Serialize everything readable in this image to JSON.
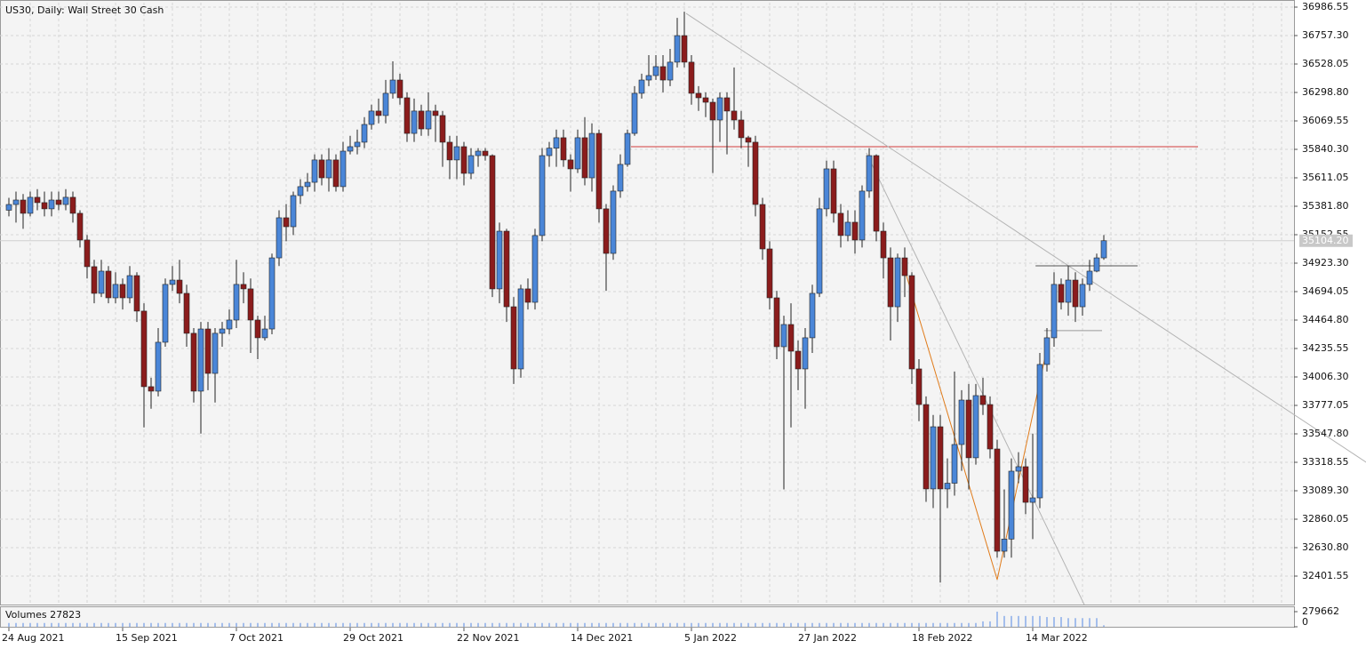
{
  "chart_data": {
    "type": "candlestick",
    "title": "US30, Daily:  Wall Street 30 Cash",
    "categories": [
      "24 Aug 2021",
      null,
      null,
      null,
      null,
      null,
      null,
      null,
      null,
      null,
      null,
      null,
      null,
      null,
      null,
      null,
      "15 Sep 2021",
      null,
      null,
      null,
      null,
      null,
      null,
      null,
      null,
      null,
      null,
      null,
      null,
      null,
      null,
      null,
      "7 Oct 2021",
      null,
      null,
      null,
      null,
      null,
      null,
      null,
      null,
      null,
      null,
      null,
      null,
      null,
      null,
      null,
      "29 Oct 2021",
      null,
      null,
      null,
      null,
      null,
      null,
      null,
      null,
      null,
      null,
      null,
      null,
      null,
      null,
      null,
      "22 Nov 2021",
      null,
      null,
      null,
      null,
      null,
      null,
      null,
      null,
      null,
      null,
      null,
      null,
      null,
      null,
      null,
      "14 Dec 2021",
      null,
      null,
      null,
      null,
      null,
      null,
      null,
      null,
      null,
      null,
      null,
      null,
      null,
      null,
      null,
      "5 Jan 2022",
      null,
      null,
      null,
      null,
      null,
      null,
      null,
      null,
      null,
      null,
      null,
      null,
      null,
      null,
      null,
      "27 Jan 2022",
      null,
      null,
      null,
      null,
      null,
      null,
      null,
      null,
      null,
      null,
      null,
      null,
      null,
      null,
      null,
      "18 Feb 2022",
      null,
      null,
      null,
      null,
      null,
      null,
      null,
      null,
      null,
      null,
      null,
      null,
      null,
      null,
      null,
      "14 Mar 2022",
      null,
      null,
      null,
      null,
      null,
      null,
      null,
      null,
      null,
      null
    ],
    "open": [
      35350,
      35396,
      35432,
      35325,
      35454,
      35411,
      35361,
      35432,
      35396,
      35454,
      35325,
      35110,
      34895,
      34680,
      34859,
      34644,
      34752,
      34644,
      34823,
      34537,
      33928,
      33892,
      34286,
      34752,
      34787,
      34680,
      34358,
      33892,
      34393,
      34035,
      34358,
      34393,
      34465,
      34752,
      34716,
      34465,
      34322,
      34393,
      34966,
      35289,
      35217,
      35468,
      35540,
      35575,
      35755,
      35611,
      35755,
      35540,
      35826,
      35862,
      35898,
      36041,
      36149,
      36113,
      36292,
      36399,
      36256,
      35969,
      36149,
      36005,
      36149,
      36113,
      35898,
      35755,
      35862,
      35647,
      35790,
      35826,
      35790,
      34716,
      35181,
      34572,
      34071,
      34716,
      34608,
      35146,
      35790,
      35850,
      35934,
      35755,
      35683,
      35934,
      35611,
      35969,
      35361,
      35002,
      35504,
      35719,
      35969,
      36292,
      36399,
      36435,
      36507,
      36399,
      36543,
      36757,
      36543,
      36292,
      36256,
      36220,
      36077,
      36256,
      36149,
      36077,
      35934,
      35898,
      35396,
      35038,
      34644,
      34250,
      34429,
      34214,
      34071,
      34322,
      34680,
      35361,
      35683,
      35325,
      35146,
      35253,
      35110,
      35504,
      35790,
      35181,
      34966,
      34572,
      34966,
      34823,
      34071,
      33784,
      33104,
      33605,
      33104,
      33150,
      33462,
      33820,
      33355,
      33856,
      33784,
      33426,
      32602,
      32700,
      33247,
      33283,
      32996,
      33032,
      34107,
      34322,
      34752,
      34608,
      34787,
      34572,
      34752,
      34859,
      34966
    ],
    "high": [
      35450,
      35500,
      35480,
      35500,
      35520,
      35500,
      35500,
      35500,
      35520,
      35500,
      35350,
      35150,
      34950,
      34950,
      34900,
      34850,
      34800,
      34900,
      34850,
      34600,
      34000,
      34400,
      34800,
      34900,
      34950,
      34750,
      34400,
      34450,
      34450,
      34400,
      34450,
      34550,
      34950,
      34850,
      34800,
      34500,
      34500,
      35000,
      35350,
      35400,
      35500,
      35600,
      35650,
      35800,
      35800,
      35850,
      35800,
      35900,
      35950,
      36000,
      36100,
      36200,
      36250,
      36400,
      36550,
      36450,
      36300,
      36250,
      36200,
      36300,
      36200,
      36150,
      35950,
      35950,
      35900,
      35850,
      35850,
      35850,
      35800,
      35250,
      35200,
      34650,
      34750,
      34800,
      35200,
      35850,
      35900,
      36000,
      36000,
      35800,
      36000,
      36100,
      36050,
      36000,
      35400,
      35550,
      35800,
      36000,
      36350,
      36450,
      36600,
      36600,
      36600,
      36650,
      36900,
      36950,
      36600,
      36350,
      36300,
      36250,
      36300,
      36300,
      36500,
      36150,
      35950,
      35950,
      35450,
      35100,
      34700,
      34500,
      34600,
      34300,
      34400,
      34750,
      35450,
      35750,
      35750,
      35400,
      35350,
      35350,
      35550,
      35850,
      35800,
      35250,
      35050,
      35000,
      35050,
      34850,
      34150,
      33850,
      33700,
      33700,
      33350,
      34050,
      33900,
      33950,
      33950,
      34000,
      33850,
      33500,
      33100,
      33350,
      33400,
      33350,
      33550,
      34200,
      34400,
      34850,
      34800,
      34900,
      34850,
      34800,
      34950,
      35000,
      35150
    ],
    "low": [
      35300,
      35250,
      35200,
      35300,
      35350,
      35300,
      35300,
      35350,
      35350,
      35250,
      35050,
      34800,
      34600,
      34650,
      34600,
      34600,
      34550,
      34600,
      34450,
      33600,
      33750,
      33850,
      34250,
      34700,
      34600,
      34250,
      33800,
      33550,
      33900,
      33800,
      34250,
      34350,
      34400,
      34600,
      34200,
      34150,
      34300,
      34350,
      34900,
      35100,
      35150,
      35400,
      35500,
      35500,
      35550,
      35500,
      35500,
      35500,
      35800,
      35800,
      35850,
      36000,
      36050,
      36050,
      36250,
      36200,
      35900,
      35900,
      35950,
      35950,
      35900,
      35700,
      35600,
      35600,
      35550,
      35600,
      35700,
      35750,
      34650,
      34600,
      34450,
      33950,
      34000,
      34550,
      34550,
      35100,
      35700,
      35700,
      35700,
      35500,
      35650,
      35550,
      35500,
      35250,
      34700,
      34950,
      35450,
      35700,
      35950,
      36250,
      36350,
      36400,
      36300,
      36350,
      36500,
      36500,
      36200,
      36150,
      36100,
      35650,
      35900,
      35800,
      36000,
      35850,
      35700,
      35300,
      34950,
      34550,
      34150,
      33100,
      33600,
      33900,
      33750,
      34200,
      34650,
      35300,
      35250,
      35050,
      35100,
      35000,
      35050,
      35450,
      35100,
      34800,
      34300,
      34450,
      34650,
      33950,
      33650,
      33000,
      32950,
      32350,
      32950,
      33050,
      33250,
      33100,
      33300,
      33700,
      33350,
      32550,
      32550,
      32550,
      33150,
      32900,
      32700,
      32950,
      34050,
      34250,
      34550,
      34500,
      34450,
      34500,
      34700,
      34850,
      34950
    ],
    "close": [
      35396,
      35432,
      35325,
      35454,
      35411,
      35361,
      35432,
      35396,
      35454,
      35325,
      35110,
      34895,
      34680,
      34859,
      34644,
      34752,
      34644,
      34823,
      34537,
      33928,
      33892,
      34286,
      34752,
      34787,
      34680,
      34358,
      33892,
      34393,
      34035,
      34358,
      34393,
      34465,
      34752,
      34716,
      34465,
      34322,
      34393,
      34966,
      35289,
      35217,
      35468,
      35540,
      35575,
      35755,
      35611,
      35755,
      35540,
      35826,
      35862,
      35898,
      36041,
      36149,
      36113,
      36292,
      36399,
      36256,
      35969,
      36149,
      36005,
      36149,
      36113,
      35898,
      35755,
      35862,
      35647,
      35790,
      35826,
      35790,
      34716,
      35181,
      34572,
      34071,
      34716,
      34608,
      35146,
      35790,
      35850,
      35934,
      35755,
      35683,
      35934,
      35611,
      35969,
      35361,
      35002,
      35504,
      35719,
      35969,
      36292,
      36399,
      36435,
      36507,
      36399,
      36543,
      36757,
      36543,
      36292,
      36256,
      36220,
      36077,
      36256,
      36149,
      36077,
      35934,
      35898,
      35396,
      35038,
      34644,
      34250,
      34429,
      34214,
      34071,
      34322,
      34680,
      35361,
      35683,
      35325,
      35146,
      35253,
      35110,
      35504,
      35790,
      35181,
      34966,
      34572,
      34966,
      34823,
      34071,
      33784,
      33104,
      33605,
      33104,
      33150,
      33462,
      33820,
      33355,
      33856,
      33784,
      33426,
      32602,
      32700,
      33247,
      33283,
      32996,
      33032,
      34107,
      34322,
      34752,
      34608,
      34787,
      34572,
      34752,
      34859,
      34966,
      35104
    ],
    "up_color": "#4a86d8",
    "down_color": "#8b1c1c",
    "wick_color": "#222222",
    "ylim": [
      32172.3,
      37022.4
    ],
    "yticks": [
      36986.55,
      {
        "value": 36757.3,
        "label": "36757.30"
      },
      36528.05,
      {
        "value": 36298.8,
        "label": "36298.80"
      },
      36069.55,
      {
        "value": 35840.3,
        "label": "35840.30"
      },
      35611.05,
      {
        "value": 35381.8,
        "label": "35381.80"
      },
      35152.55,
      {
        "value": 34923.3,
        "label": "34923.30"
      },
      34694.05,
      {
        "value": 34464.8,
        "label": "34464.80"
      },
      34235.55,
      {
        "value": 34006.3,
        "label": "34006.30"
      },
      33777.05,
      {
        "value": 33547.8,
        "label": "33547.80"
      },
      33318.55,
      {
        "value": 33089.3,
        "label": "33089.30"
      },
      32860.05,
      {
        "value": 32630.8,
        "label": "32630.80"
      },
      32401.55
    ],
    "grid": true,
    "current_price": {
      "value": 35104.2,
      "label": "35104.20"
    },
    "volume_title": "Volumes",
    "volume_color": "#6e9be6",
    "volumes": [
      70000,
      70000,
      70000,
      70000,
      70000,
      70000,
      70000,
      70000,
      70000,
      70000,
      70000,
      70000,
      70000,
      70000,
      70000,
      70000,
      70000,
      70000,
      70000,
      70000,
      70000,
      70000,
      70000,
      70000,
      70000,
      70000,
      70000,
      70000,
      70000,
      70000,
      70000,
      70000,
      70000,
      70000,
      70000,
      70000,
      70000,
      70000,
      70000,
      70000,
      70000,
      70000,
      70000,
      70000,
      70000,
      70000,
      70000,
      70000,
      70000,
      70000,
      70000,
      70000,
      70000,
      70000,
      70000,
      70000,
      70000,
      70000,
      70000,
      70000,
      70000,
      70000,
      70000,
      70000,
      70000,
      70000,
      70000,
      70000,
      70000,
      70000,
      70000,
      70000,
      70000,
      70000,
      70000,
      70000,
      70000,
      70000,
      70000,
      70000,
      70000,
      70000,
      70000,
      70000,
      70000,
      70000,
      70000,
      70000,
      70000,
      70000,
      70000,
      70000,
      70000,
      70000,
      70000,
      70000,
      70000,
      70000,
      70000,
      70000,
      70000,
      70000,
      70000,
      70000,
      70000,
      70000,
      70000,
      70000,
      70000,
      70000,
      70000,
      70000,
      70000,
      70000,
      70000,
      70000,
      70000,
      70000,
      70000,
      70000,
      70000,
      70000,
      70000,
      70000,
      70000,
      70000,
      70000,
      70000,
      70000,
      70000,
      70000,
      70000,
      70000,
      70000,
      70000,
      70000,
      70000,
      100000,
      100000,
      279662,
      200000,
      200000,
      200000,
      200000,
      200000,
      200000,
      180000,
      180000,
      180000,
      160000,
      160000,
      160000,
      160000,
      160000,
      27823
    ],
    "vlim": [
      0,
      279662
    ],
    "vticks": [
      279662,
      0
    ],
    "lines": [
      {
        "color": "#d23c3c",
        "x": [
          87.5,
          167.25
        ],
        "y": [
          35862,
          35862
        ]
      },
      {
        "color": "#b4b4b4",
        "x": [
          95.25,
          190.9
        ],
        "y": [
          36936,
          33319
        ]
      },
      {
        "color": "#b4b4b4",
        "x": [
          120.6,
          151.25
        ],
        "y": [
          35812,
          32172
        ]
      },
      {
        "color": "#e07b1a",
        "x": [
          125.75,
          139,
          146
        ],
        "y": [
          34917,
          32373,
          34235
        ]
      },
      {
        "color": "#555555",
        "x": [
          144.4,
          158.75
        ],
        "y": [
          34902,
          34902
        ]
      },
      {
        "color": "#999999",
        "x": [
          145.6,
          153.75
        ],
        "y": [
          34380,
          34380
        ]
      }
    ]
  }
}
